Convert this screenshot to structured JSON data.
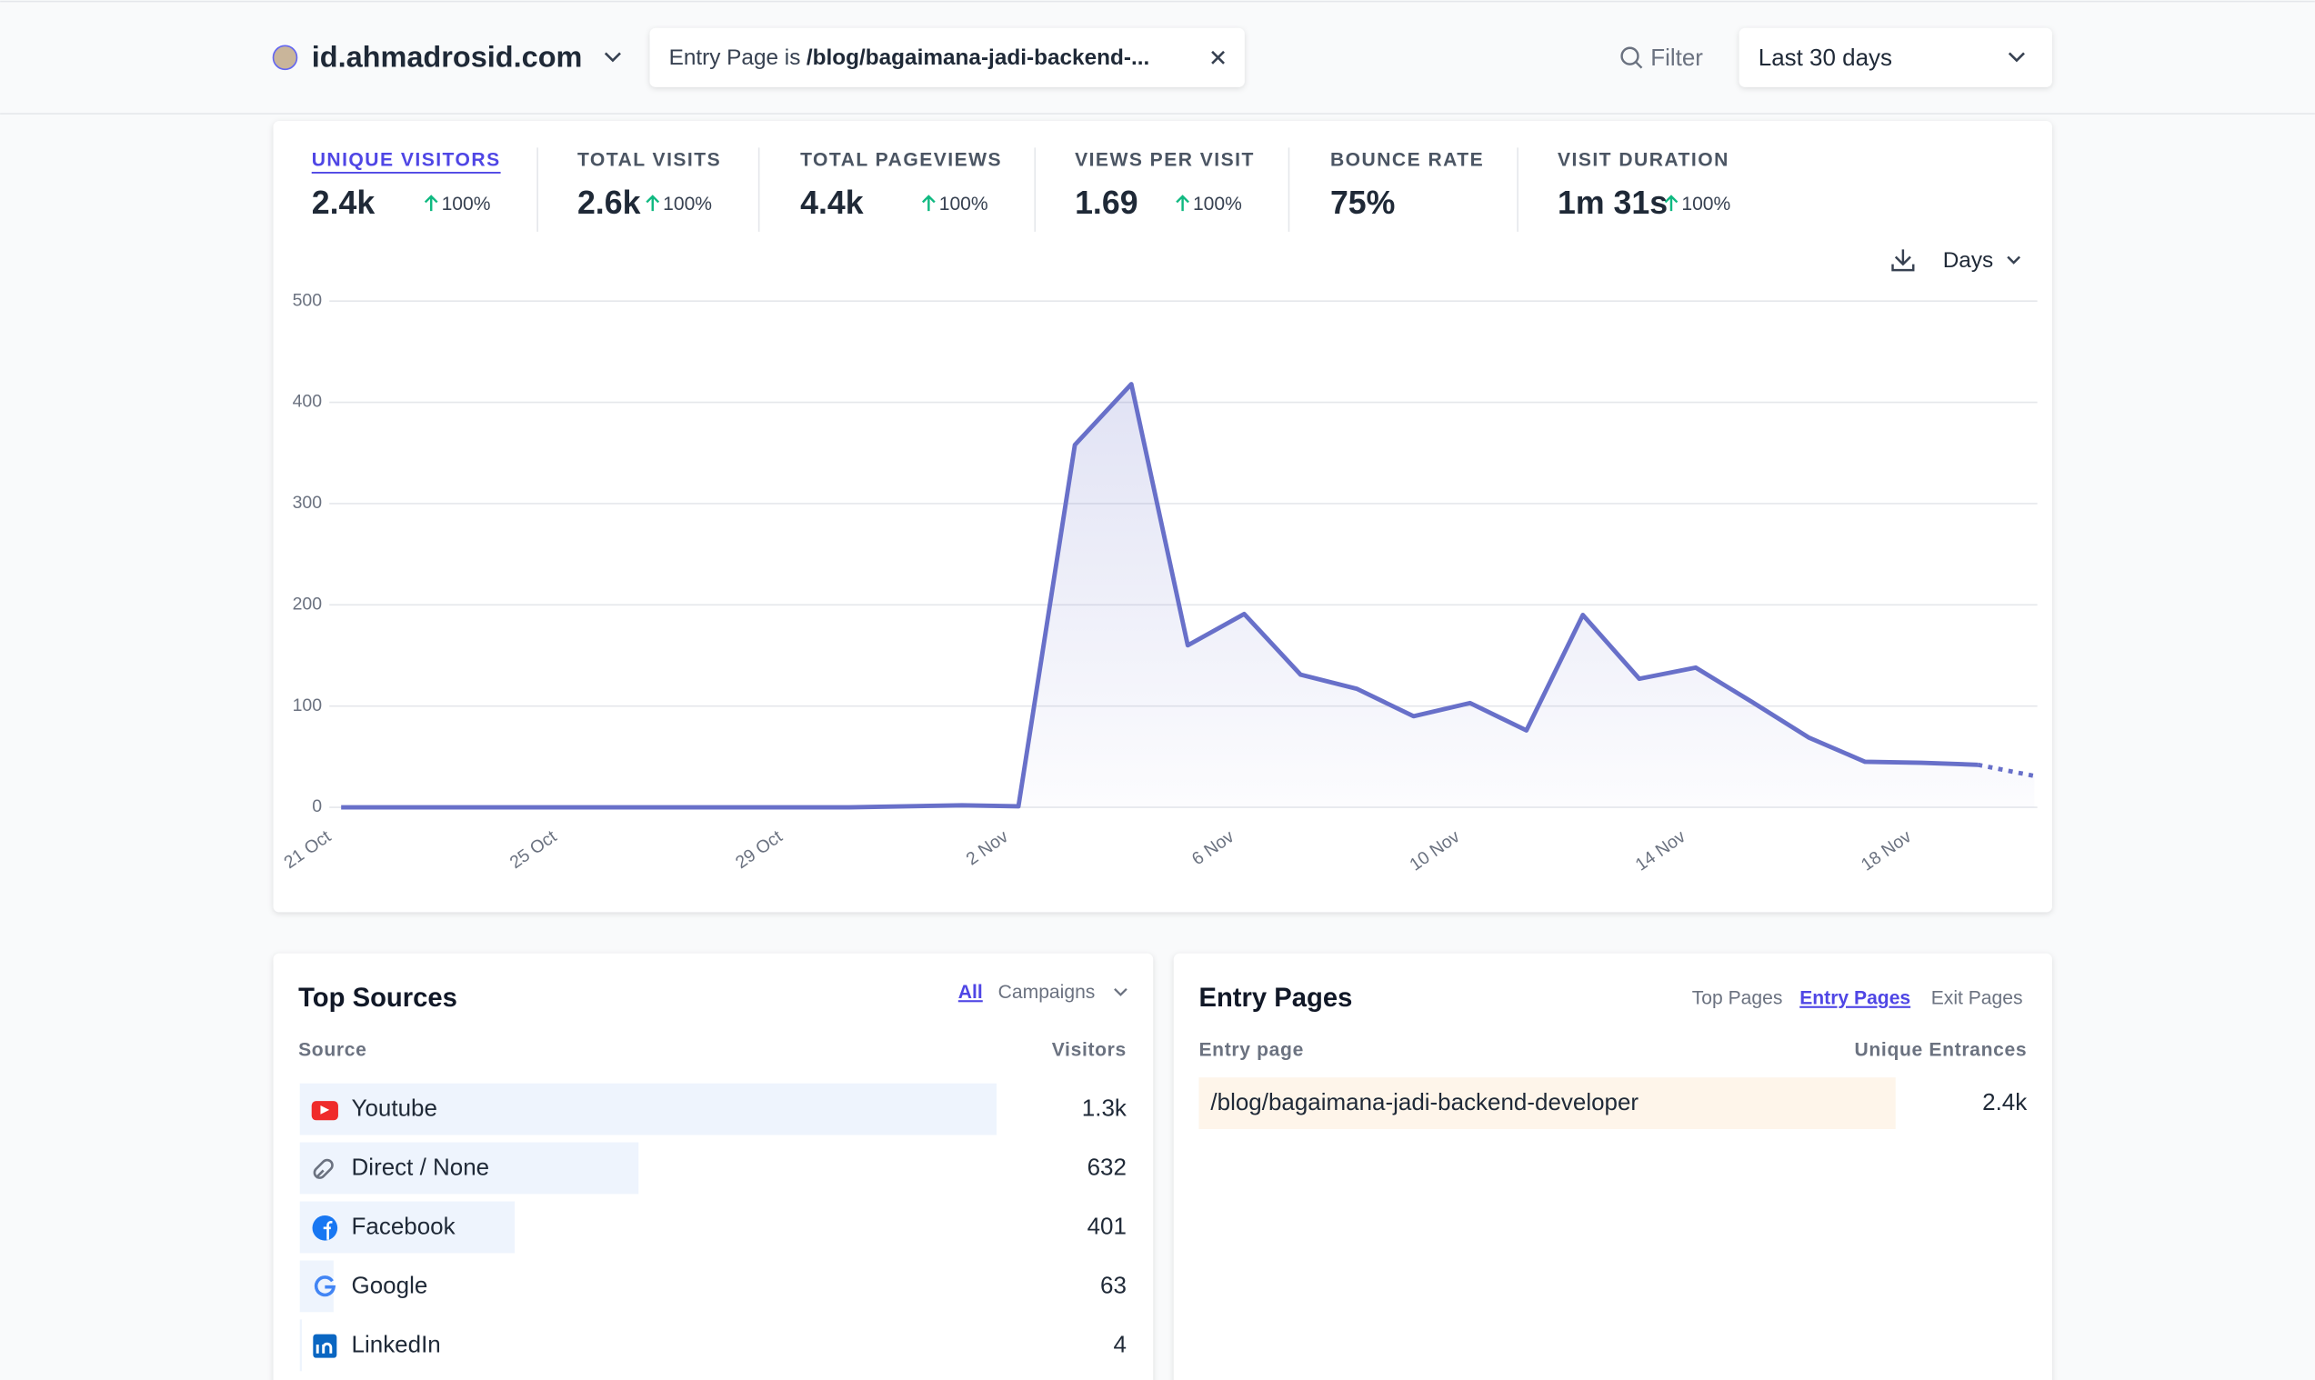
{
  "header": {
    "site": "id.ahmadrosid.com",
    "filter": {
      "prefix": "Entry Page is",
      "value": "/blog/bagaimana-jadi-backend-..."
    },
    "filter_button": "Filter",
    "period": "Last 30 days"
  },
  "stats": [
    {
      "label": "UNIQUE VISITORS",
      "value": "2.4k",
      "change": "100%"
    },
    {
      "label": "TOTAL VISITS",
      "value": "2.6k",
      "change": "100%"
    },
    {
      "label": "TOTAL PAGEVIEWS",
      "value": "4.4k",
      "change": "100%"
    },
    {
      "label": "VIEWS PER VISIT",
      "value": "1.69",
      "change": "100%"
    },
    {
      "label": "BOUNCE RATE",
      "value": "75%"
    },
    {
      "label": "VISIT DURATION",
      "value": "1m 31s",
      "change": "100%"
    }
  ],
  "active_stat": 0,
  "interval": "Days",
  "chart_data": {
    "type": "line",
    "categories": [
      "21 Oct",
      null,
      null,
      null,
      "25 Oct",
      null,
      null,
      null,
      "29 Oct",
      null,
      null,
      null,
      "2 Nov",
      null,
      null,
      null,
      "6 Nov",
      null,
      null,
      null,
      "10 Nov",
      null,
      null,
      null,
      "14 Nov",
      null,
      null,
      null,
      "18 Nov",
      null,
      null
    ],
    "values": [
      0,
      0,
      0,
      0,
      0,
      0,
      0,
      0,
      0,
      0,
      1,
      2,
      1,
      358,
      418,
      160,
      191,
      131,
      117,
      90,
      103,
      76,
      190,
      127,
      138,
      104,
      69,
      45,
      44,
      42,
      31
    ],
    "color": "#6870c9",
    "ylim": [
      0,
      500
    ],
    "yticks": [
      0,
      100,
      200,
      300,
      400,
      500
    ],
    "grid": true,
    "area": true,
    "dotted_last_segment": true
  },
  "sources": {
    "title": "Top Sources",
    "tabs": [
      "All",
      "Campaigns"
    ],
    "active_tab": 0,
    "columns": [
      "Source",
      "Visitors"
    ],
    "rows": [
      {
        "name": "Youtube",
        "visitors": 1300,
        "visitors_label": "1.3k"
      },
      {
        "name": "Direct / None",
        "visitors": 632
      },
      {
        "name": "Facebook",
        "visitors": 401
      },
      {
        "name": "Google",
        "visitors": 63
      },
      {
        "name": "LinkedIn",
        "visitors": 4
      }
    ]
  },
  "entry_pages": {
    "title": "Entry Pages",
    "tabs": [
      "Top Pages",
      "Entry Pages",
      "Exit Pages"
    ],
    "active_tab": 1,
    "columns": [
      "Entry page",
      "Unique Entrances"
    ],
    "rows": [
      {
        "name": "/blog/bagaimana-jadi-backend-developer",
        "entrances": 2400,
        "entrances_label": "2.4k"
      }
    ]
  }
}
